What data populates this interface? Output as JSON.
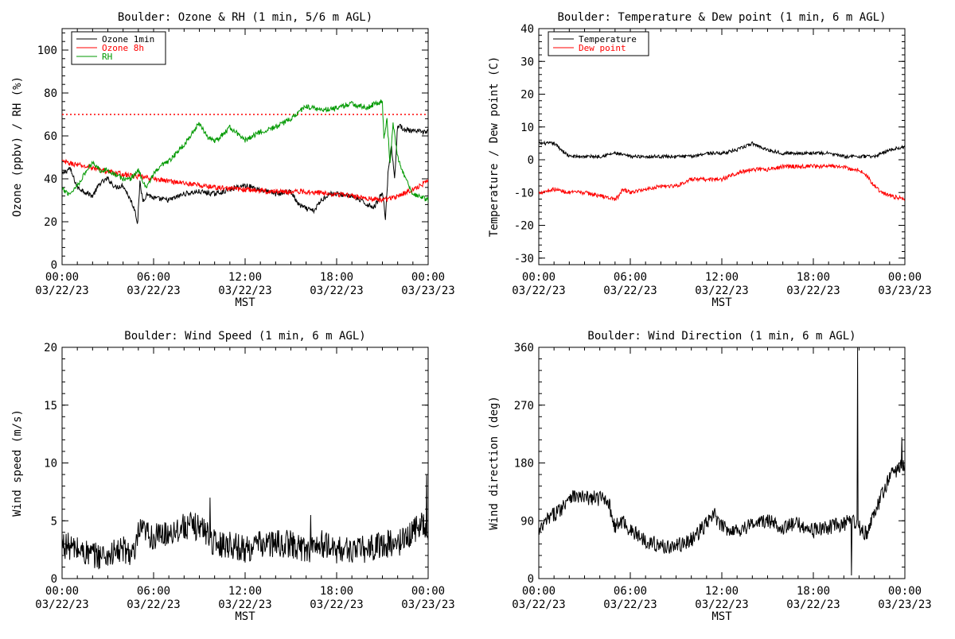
{
  "chart_data": [
    {
      "type": "line",
      "title": "Boulder: Ozone & RH (1 min, 5/6 m AGL)",
      "xlabel": "MST",
      "ylabel": "Ozone (ppbv) / RH (%)",
      "xlim": [
        "03/22/23 00:00",
        "03/23/23 00:00"
      ],
      "ylim": [
        0,
        110
      ],
      "yticks": [
        0,
        20,
        40,
        60,
        80,
        100
      ],
      "xticks": [
        {
          "time": "00:00",
          "date": "03/22/23"
        },
        {
          "time": "06:00",
          "date": "03/22/23"
        },
        {
          "time": "12:00",
          "date": "03/22/23"
        },
        {
          "time": "18:00",
          "date": "03/22/23"
        },
        {
          "time": "00:00",
          "date": "03/23/23"
        }
      ],
      "legend": "top-left",
      "reference_line": {
        "y": 70,
        "color": "#ff0000",
        "style": "dotted"
      },
      "series": [
        {
          "name": "Ozone 1min",
          "color": "#000000",
          "x": [
            0,
            0.5,
            1,
            1.5,
            2,
            2.5,
            3,
            3.5,
            4,
            4.5,
            4.8,
            4.95,
            5.1,
            5.3,
            5.6,
            6,
            7,
            8,
            9,
            10,
            11,
            12,
            13,
            14,
            15,
            15.5,
            16,
            16.5,
            17,
            17.5,
            18,
            19,
            20,
            20.5,
            21,
            21.2,
            21.4,
            21.6,
            21.8,
            22,
            22.5,
            23,
            23.5,
            24
          ],
          "y": [
            42,
            45,
            36,
            34,
            32,
            38,
            40,
            36,
            37,
            30,
            25,
            19,
            38,
            30,
            33,
            31,
            30,
            33,
            34,
            33,
            35,
            37,
            35,
            33,
            34,
            28,
            26,
            25,
            30,
            33,
            33,
            32,
            28,
            27,
            34,
            22,
            46,
            55,
            40,
            65,
            63,
            62,
            62,
            62
          ]
        },
        {
          "name": "Ozone 8h",
          "color": "#ff0000",
          "x": [
            0,
            2,
            4,
            6,
            8,
            10,
            12,
            14,
            16,
            18,
            20,
            21,
            22,
            23,
            24
          ],
          "y": [
            48,
            45,
            42,
            40,
            38,
            36,
            35,
            34,
            34,
            33,
            31,
            30,
            32,
            35,
            39
          ]
        },
        {
          "name": "RH",
          "color": "#009900",
          "x": [
            0,
            0.5,
            1,
            2,
            2.5,
            3,
            4,
            4.5,
            5,
            5.5,
            6,
            6.5,
            7,
            8,
            9,
            9.5,
            10,
            11,
            12,
            13,
            14,
            15,
            16,
            17,
            18,
            19,
            20,
            20.5,
            21,
            21.1,
            21.3,
            21.5,
            21.7,
            22,
            22.5,
            23,
            24
          ],
          "y": [
            35,
            33,
            37,
            48,
            44,
            44,
            40,
            40,
            44,
            36,
            42,
            46,
            48,
            56,
            66,
            60,
            57,
            64,
            58,
            62,
            64,
            68,
            74,
            72,
            73,
            75,
            73,
            75,
            76,
            58,
            68,
            47,
            66,
            50,
            40,
            33,
            30
          ]
        }
      ]
    },
    {
      "type": "line",
      "title": "Boulder: Temperature & Dew point (1 min, 6 m AGL)",
      "xlabel": "MST",
      "ylabel": "Temperature / Dew point (C)",
      "xlim": [
        "03/22/23 00:00",
        "03/23/23 00:00"
      ],
      "ylim": [
        -32,
        40
      ],
      "yticks": [
        -30,
        -20,
        -10,
        0,
        10,
        20,
        30,
        40
      ],
      "xticks": [
        {
          "time": "00:00",
          "date": "03/22/23"
        },
        {
          "time": "06:00",
          "date": "03/22/23"
        },
        {
          "time": "12:00",
          "date": "03/22/23"
        },
        {
          "time": "18:00",
          "date": "03/22/23"
        },
        {
          "time": "00:00",
          "date": "03/23/23"
        }
      ],
      "legend": "top-left",
      "series": [
        {
          "name": "Temperature",
          "color": "#000000",
          "x": [
            0,
            1,
            1.5,
            2,
            3,
            4,
            5,
            6,
            7,
            8,
            9,
            10,
            11,
            12,
            13,
            14,
            15,
            16,
            17,
            18,
            19,
            20,
            21,
            22,
            23,
            24
          ],
          "y": [
            5,
            5,
            3,
            1,
            1,
            1,
            2,
            1,
            1,
            1,
            1,
            1,
            2,
            2,
            3,
            5,
            3,
            2,
            2,
            2,
            2,
            1,
            1,
            1,
            3,
            4
          ],
          "noise": 0.5
        },
        {
          "name": "Dew point",
          "color": "#ff0000",
          "x": [
            0,
            1,
            2,
            3,
            4,
            5,
            5.3,
            5.5,
            6,
            7,
            8,
            9,
            10,
            11,
            12,
            13,
            14,
            15,
            16,
            17,
            18,
            19,
            20,
            20.5,
            21,
            21.5,
            22,
            22.5,
            23,
            24
          ],
          "y": [
            -10,
            -9,
            -10,
            -10,
            -11,
            -12,
            -11,
            -9,
            -10,
            -9,
            -8,
            -8,
            -6,
            -6,
            -6,
            -4,
            -3,
            -3,
            -2,
            -2,
            -2,
            -2,
            -2,
            -3,
            -3,
            -5,
            -8,
            -10,
            -11,
            -12
          ],
          "noise": 0.6
        }
      ]
    },
    {
      "type": "line",
      "title": "Boulder: Wind Speed (1 min, 6 m AGL)",
      "xlabel": "MST",
      "ylabel": "Wind speed (m/s)",
      "xlim": [
        "03/22/23 00:00",
        "03/23/23 00:00"
      ],
      "ylim": [
        0,
        20
      ],
      "yticks": [
        0,
        5,
        10,
        15,
        20
      ],
      "xticks": [
        {
          "time": "00:00",
          "date": "03/22/23"
        },
        {
          "time": "06:00",
          "date": "03/22/23"
        },
        {
          "time": "12:00",
          "date": "03/22/23"
        },
        {
          "time": "18:00",
          "date": "03/22/23"
        },
        {
          "time": "00:00",
          "date": "03/23/23"
        }
      ],
      "series": [
        {
          "name": "",
          "color": "#000000",
          "x": [
            0,
            1,
            2,
            3,
            4,
            4.8,
            5,
            5.5,
            6,
            7,
            8,
            9,
            9.5,
            10,
            11,
            12,
            13,
            14,
            15,
            16,
            17,
            18,
            19,
            20,
            21,
            22,
            23,
            23.5,
            24
          ],
          "y": [
            3,
            2.5,
            2,
            2,
            2.5,
            2,
            4,
            4,
            3.5,
            4,
            4.5,
            4.5,
            4,
            3,
            3,
            2.5,
            3,
            3,
            3,
            2.5,
            3,
            2.5,
            2.5,
            2.5,
            3,
            3,
            4,
            5,
            4
          ],
          "noise": 1.2,
          "spikes": [
            {
              "x": 9.7,
              "y": 7
            },
            {
              "x": 16.3,
              "y": 5.5
            },
            {
              "x": 23.9,
              "y": 9
            }
          ]
        }
      ]
    },
    {
      "type": "line",
      "title": "Boulder: Wind Direction (1 min, 6 m AGL)",
      "xlabel": "MST",
      "ylabel": "Wind direction (deg)",
      "xlim": [
        "03/22/23 00:00",
        "03/23/23 00:00"
      ],
      "ylim": [
        0,
        360
      ],
      "yticks": [
        0,
        90,
        180,
        270,
        360
      ],
      "xticks": [
        {
          "time": "00:00",
          "date": "03/22/23"
        },
        {
          "time": "06:00",
          "date": "03/22/23"
        },
        {
          "time": "12:00",
          "date": "03/22/23"
        },
        {
          "time": "18:00",
          "date": "03/22/23"
        },
        {
          "time": "00:00",
          "date": "03/23/23"
        }
      ],
      "series": [
        {
          "name": "",
          "color": "#000000",
          "x": [
            0,
            0.5,
            1,
            1.5,
            2,
            3,
            4,
            4.5,
            5,
            5.5,
            6,
            7,
            8,
            9,
            10,
            11,
            11.5,
            12,
            13,
            14,
            15,
            16,
            17,
            18,
            19,
            20,
            20.5,
            21,
            21.5,
            22,
            22.5,
            23,
            24
          ],
          "y": [
            70,
            90,
            100,
            110,
            130,
            125,
            125,
            125,
            80,
            90,
            75,
            60,
            50,
            50,
            60,
            85,
            100,
            80,
            75,
            85,
            90,
            80,
            85,
            75,
            80,
            85,
            90,
            80,
            70,
            100,
            130,
            160,
            180
          ],
          "noise": 12,
          "spikes": [
            {
              "x": 20.5,
              "y": 5
            },
            {
              "x": 20.9,
              "y": 360
            },
            {
              "x": 23.8,
              "y": 220
            }
          ]
        }
      ]
    }
  ]
}
